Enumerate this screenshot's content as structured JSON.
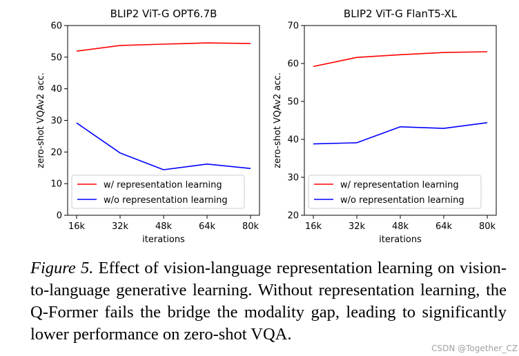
{
  "chart_data": [
    {
      "type": "line",
      "title": "BLIP2 ViT-G OPT6.7B",
      "xlabel": "iterations",
      "ylabel": "zero-shot VQAv2 acc.",
      "categories": [
        "16k",
        "32k",
        "48k",
        "64k",
        "80k"
      ],
      "ylim": [
        0,
        60
      ],
      "yticks": [
        0,
        10,
        20,
        30,
        40,
        50,
        60
      ],
      "series": [
        {
          "name": "w/ representation learning",
          "color": "#ff0000",
          "values": [
            51.9,
            53.7,
            54.1,
            54.5,
            54.3
          ]
        },
        {
          "name": "w/o representation learning",
          "color": "#0000ff",
          "values": [
            29.2,
            19.7,
            14.4,
            16.2,
            14.8
          ]
        }
      ],
      "legend": "lower-left"
    },
    {
      "type": "line",
      "title": "BLIP2 ViT-G FlanT5-XL",
      "xlabel": "iterations",
      "ylabel": "zero-shot VQAv2 acc.",
      "categories": [
        "16k",
        "32k",
        "48k",
        "64k",
        "80k"
      ],
      "ylim": [
        20,
        70
      ],
      "yticks": [
        20,
        30,
        40,
        50,
        60,
        70
      ],
      "series": [
        {
          "name": "w/ representation learning",
          "color": "#ff0000",
          "values": [
            59.2,
            61.6,
            62.3,
            62.9,
            63.1
          ]
        },
        {
          "name": "w/o representation learning",
          "color": "#0000ff",
          "values": [
            38.8,
            39.1,
            43.3,
            42.9,
            44.4
          ]
        }
      ],
      "legend": "lower-left"
    }
  ],
  "caption": {
    "label": "Figure 5.",
    "text": "Effect of vision-language representation learning on vision-to-language generative learning. Without representation learning, the Q-Former fails the bridge the modality gap, leading to significantly lower performance on zero-shot VQA."
  },
  "watermark": "CSDN @Together_CZ"
}
